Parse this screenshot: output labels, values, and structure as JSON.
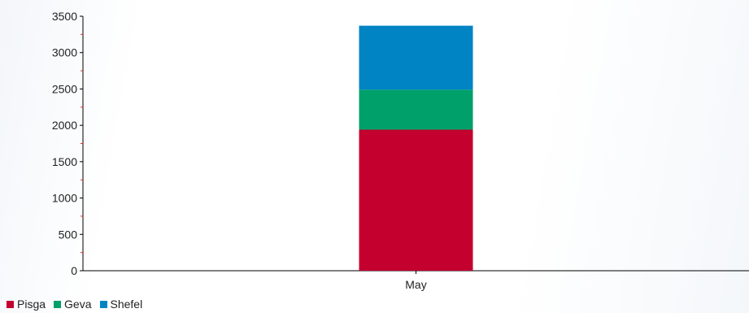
{
  "chart_data": {
    "type": "bar",
    "stacked": true,
    "categories": [
      "May"
    ],
    "series": [
      {
        "name": "Pisga",
        "values": [
          1940
        ],
        "color": "#c4002f"
      },
      {
        "name": "Geva",
        "values": [
          550
        ],
        "color": "#00a06a"
      },
      {
        "name": "Shefel",
        "values": [
          880
        ],
        "color": "#0084c4"
      }
    ],
    "ylim": [
      0,
      3500
    ],
    "yticks": [
      0,
      500,
      1000,
      1500,
      2000,
      2500,
      3000,
      3500
    ],
    "title": "",
    "xlabel": "",
    "ylabel": "",
    "grid": false,
    "legend_position": "bottom-left"
  }
}
